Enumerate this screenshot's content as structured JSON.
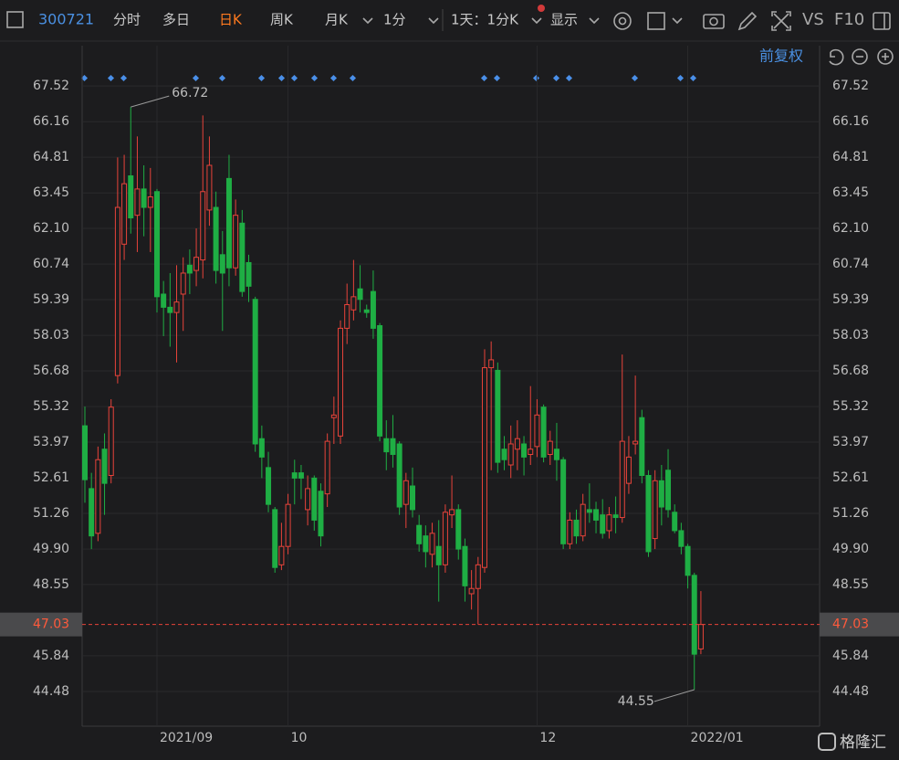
{
  "toolbar": {
    "code": "300721",
    "tabs": [
      "分时",
      "多日",
      "日K",
      "周K",
      "月K"
    ],
    "interval": "1分",
    "range": "1天：1分K",
    "display": "显示",
    "vs": "VS",
    "f10": "F10",
    "adjust": "前复权",
    "watermark": "格隆汇"
  },
  "chart_data": {
    "type": "candlestick",
    "categories": [
      null,
      null,
      null,
      null,
      null,
      null,
      null,
      null,
      null,
      null,
      null,
      "2021/09",
      null,
      null,
      null,
      null,
      null,
      null,
      null,
      null,
      null,
      null,
      null,
      null,
      null,
      null,
      null,
      null,
      null,
      null,
      null,
      "10",
      null,
      null,
      null,
      null,
      null,
      null,
      null,
      null,
      null,
      null,
      null,
      null,
      null,
      null,
      null,
      null,
      null,
      null,
      null,
      null,
      null,
      null,
      null,
      null,
      null,
      null,
      null,
      null,
      null,
      null,
      null,
      null,
      null,
      null,
      null,
      null,
      null,
      "12",
      null,
      null,
      null,
      null,
      null,
      null,
      null,
      null,
      null,
      null,
      null,
      null,
      null,
      null,
      null,
      null,
      null,
      null,
      null,
      null,
      null,
      null,
      "2022/01",
      null,
      null
    ],
    "open": [
      54.59,
      52.2,
      50.5,
      53.7,
      52.7,
      56.5,
      61.5,
      64.1,
      62.6,
      63.6,
      62.9,
      63.5,
      59.6,
      59.1,
      58.9,
      59.6,
      60.7,
      60.5,
      60.9,
      62.8,
      62.9,
      61.1,
      64.0,
      60.6,
      62.3,
      60.8,
      59.4,
      54.1,
      53.0,
      51.4,
      49.3,
      50.0,
      52.8,
      52.8,
      51.4,
      52.6,
      52.1,
      52.0,
      54.9,
      54.2,
      58.3,
      59.0,
      59.8,
      59.0,
      59.7,
      58.4,
      54.1,
      54.1,
      53.9,
      51.6,
      52.3,
      50.8,
      50.4,
      49.7,
      50.0,
      49.3,
      51.2,
      51.4,
      50.0,
      48.2,
      48.4,
      49.2,
      56.8,
      56.7,
      53.7,
      53.1,
      53.7,
      53.9,
      53.5,
      53.8,
      55.3,
      53.5,
      53.7,
      53.3,
      50.1,
      51.0,
      50.4,
      51.4,
      51.4,
      51.2,
      50.6,
      51.2,
      51.1,
      52.4,
      53.9,
      54.9,
      52.7,
      50.3,
      52.5,
      52.9,
      51.3,
      50.6,
      50.0,
      48.9,
      46.1
    ],
    "high": [
      55.32,
      52.8,
      53.8,
      54.3,
      55.6,
      64.8,
      64.9,
      66.72,
      65.6,
      64.5,
      64.4,
      63.6,
      60.1,
      60.4,
      60.7,
      61.0,
      61.3,
      62.1,
      66.4,
      65.6,
      63.5,
      62.0,
      64.9,
      63.2,
      62.8,
      61.1,
      59.5,
      54.6,
      53.6,
      51.5,
      50.9,
      52.0,
      53.3,
      53.1,
      52.7,
      52.7,
      52.4,
      54.3,
      55.7,
      58.6,
      60.0,
      60.9,
      60.7,
      59.2,
      60.5,
      58.5,
      54.8,
      55.0,
      54.0,
      52.8,
      53.0,
      51.2,
      50.8,
      50.9,
      51.0,
      51.6,
      52.7,
      51.6,
      50.3,
      49.1,
      49.6,
      57.5,
      57.8,
      57.0,
      54.2,
      54.6,
      54.8,
      54.2,
      56.1,
      55.6,
      55.4,
      54.4,
      54.7,
      53.4,
      51.3,
      51.4,
      52.0,
      52.4,
      51.7,
      51.8,
      51.5,
      51.9,
      57.3,
      54.2,
      56.5,
      55.2,
      52.9,
      52.9,
      53.1,
      53.7,
      51.6,
      50.9,
      50.1,
      49.0,
      48.3
    ],
    "low": [
      51.66,
      49.9,
      50.2,
      51.2,
      52.4,
      56.2,
      60.9,
      61.9,
      61.2,
      61.8,
      61.2,
      58.9,
      58.0,
      57.6,
      57.0,
      58.2,
      59.6,
      59.9,
      60.2,
      62.2,
      60.0,
      58.2,
      59.9,
      60.3,
      59.5,
      59.3,
      53.6,
      52.6,
      51.3,
      49.0,
      49.1,
      49.7,
      51.6,
      51.8,
      50.8,
      50.6,
      50.0,
      51.5,
      53.9,
      53.9,
      57.7,
      58.6,
      58.9,
      58.7,
      57.9,
      54.0,
      52.9,
      53.0,
      51.2,
      50.7,
      51.1,
      49.8,
      49.2,
      49.2,
      47.9,
      49.0,
      50.7,
      49.5,
      47.9,
      47.6,
      47.03,
      49.0,
      52.9,
      52.8,
      52.9,
      52.6,
      52.9,
      52.7,
      53.1,
      53.4,
      53.2,
      53.1,
      52.5,
      49.9,
      49.9,
      50.1,
      50.2,
      50.9,
      50.5,
      50.3,
      50.3,
      50.5,
      50.9,
      52.0,
      53.5,
      52.4,
      49.6,
      49.9,
      50.8,
      51.1,
      50.5,
      49.7,
      48.4,
      44.55,
      45.9
    ],
    "close": [
      52.54,
      50.4,
      53.3,
      52.4,
      55.3,
      62.9,
      63.8,
      62.5,
      63.6,
      62.9,
      63.3,
      59.5,
      59.1,
      58.9,
      59.3,
      60.4,
      60.4,
      61.0,
      63.5,
      64.5,
      60.5,
      60.4,
      60.6,
      62.6,
      59.7,
      59.9,
      53.9,
      53.4,
      51.6,
      49.2,
      50.0,
      51.6,
      52.6,
      52.6,
      52.2,
      51.0,
      50.4,
      54.0,
      55.0,
      58.3,
      59.2,
      59.5,
      59.4,
      58.9,
      58.3,
      54.2,
      53.6,
      53.5,
      51.5,
      52.5,
      51.4,
      50.1,
      49.8,
      50.5,
      49.3,
      51.3,
      51.4,
      49.9,
      48.5,
      48.4,
      49.3,
      56.8,
      57.1,
      53.2,
      53.3,
      53.9,
      54.1,
      53.4,
      53.7,
      55.0,
      53.4,
      54.0,
      53.3,
      50.1,
      51.0,
      50.4,
      51.6,
      51.3,
      51.0,
      50.5,
      51.2,
      51.1,
      54.0,
      53.4,
      54.0,
      52.7,
      49.8,
      52.5,
      51.5,
      51.4,
      50.6,
      50.0,
      48.9,
      45.9,
      47.03
    ],
    "up_color": "#e8433a",
    "down_color": "#1fae44",
    "ylim": [
      43.16,
      68.01
    ],
    "yticks": [
      67.52,
      66.16,
      64.81,
      63.45,
      {
        "value": 62.1,
        "label": "62.10"
      },
      60.74,
      59.39,
      58.03,
      56.68,
      55.32,
      53.97,
      52.61,
      51.26,
      {
        "value": 49.9,
        "label": "49.90"
      },
      48.55,
      45.84,
      44.48
    ],
    "grid": true,
    "last_price": 47.03,
    "annotations": [
      66.72,
      44.55
    ]
  }
}
